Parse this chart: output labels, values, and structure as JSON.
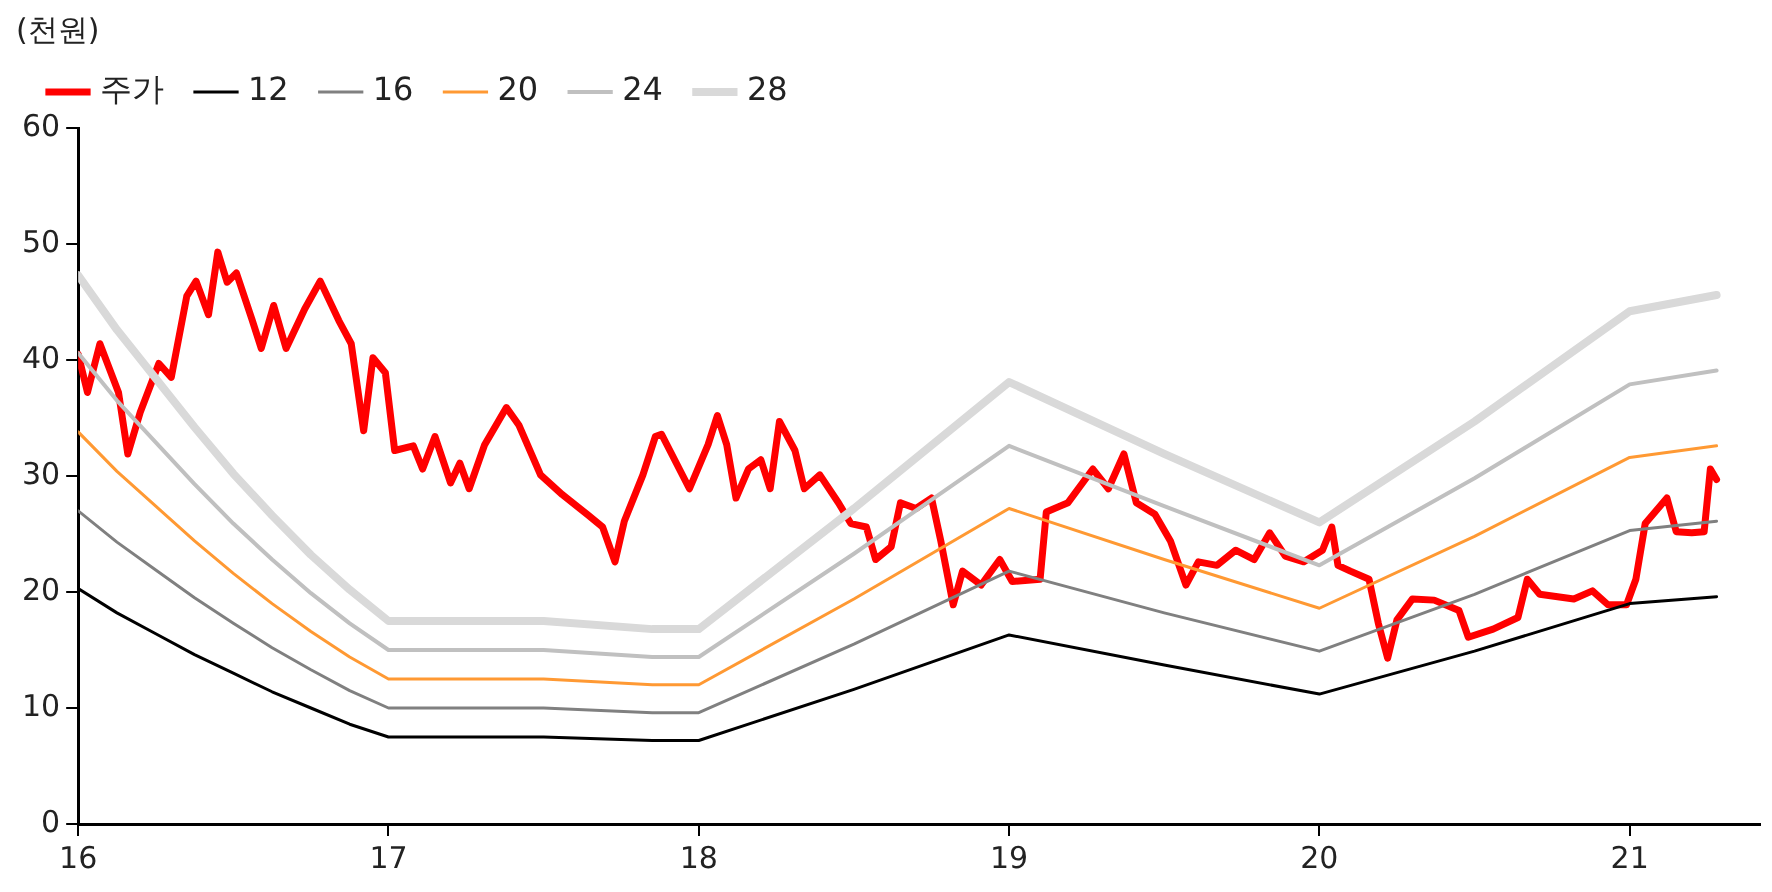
{
  "chart_data": {
    "type": "line",
    "ylabel": "(천원)",
    "x": [
      16,
      16.125,
      16.25,
      16.375,
      16.5,
      16.625,
      16.75,
      16.875,
      17,
      17.5,
      17.85,
      18,
      18.5,
      19,
      19.5,
      20,
      20.5,
      21,
      21.28
    ],
    "xlim": [
      16,
      21.42
    ],
    "xticks": [
      16,
      17,
      18,
      19,
      20,
      21
    ],
    "ylim": [
      0,
      60
    ],
    "yticks": [
      0,
      10,
      20,
      30,
      40,
      50,
      60
    ],
    "grid": false,
    "legend": "top left",
    "marker": "none",
    "line_style": "solid",
    "series": [
      {
        "name": "주가",
        "color": "#ff0000",
        "x": [
          16,
          16.03,
          16.07,
          16.13,
          16.16,
          16.2,
          16.26,
          16.3,
          16.35,
          16.38,
          16.42,
          16.45,
          16.48,
          16.51,
          16.56,
          16.59,
          16.63,
          16.67,
          16.73,
          16.78,
          16.84,
          16.88,
          16.92,
          16.95,
          16.99,
          17.02,
          17.08,
          17.11,
          17.15,
          17.2,
          17.23,
          17.26,
          17.31,
          17.38,
          17.42,
          17.49,
          17.56,
          17.64,
          17.69,
          17.73,
          17.76,
          17.82,
          17.86,
          17.88,
          17.97,
          18.03,
          18.06,
          18.09,
          18.12,
          18.16,
          18.2,
          18.23,
          18.26,
          18.31,
          18.34,
          18.39,
          18.45,
          18.49,
          18.54,
          18.57,
          18.62,
          18.65,
          18.7,
          18.75,
          18.78,
          18.82,
          18.85,
          18.91,
          18.97,
          19.01,
          19.1,
          19.12,
          19.19,
          19.27,
          19.32,
          19.37,
          19.41,
          19.47,
          19.52,
          19.57,
          19.61,
          19.67,
          19.73,
          19.79,
          19.84,
          19.89,
          19.95,
          20.01,
          20.04,
          20.06,
          20.1,
          20.16,
          20.19,
          20.22,
          20.25,
          20.3,
          20.37,
          20.45,
          20.48,
          20.56,
          20.64,
          20.67,
          20.71,
          20.82,
          20.88,
          20.93,
          20.99,
          21.02,
          21.05,
          21.12,
          21.15,
          21.2,
          21.24,
          21.26,
          21.28
        ],
        "values": [
          40.5,
          37.2,
          41.4,
          37.2,
          31.9,
          35.5,
          39.7,
          38.5,
          45.5,
          46.8,
          43.9,
          49.3,
          46.7,
          47.5,
          43.5,
          41,
          44.7,
          41,
          44.4,
          46.8,
          43.4,
          41.4,
          33.9,
          40.2,
          38.9,
          32.2,
          32.6,
          30.6,
          33.4,
          29.4,
          31.1,
          28.9,
          32.7,
          35.9,
          34.4,
          30.1,
          28.4,
          26.7,
          25.6,
          22.6,
          26.1,
          30.1,
          33.4,
          33.6,
          28.9,
          32.7,
          35.2,
          32.7,
          28.1,
          30.6,
          31.4,
          28.9,
          34.7,
          32.2,
          28.9,
          30.1,
          27.7,
          25.9,
          25.6,
          22.8,
          23.9,
          27.7,
          27.2,
          28.1,
          24.4,
          18.9,
          21.8,
          20.6,
          22.8,
          20.9,
          21.1,
          26.9,
          27.7,
          30.6,
          28.9,
          31.9,
          27.7,
          26.7,
          24.4,
          20.6,
          22.6,
          22.3,
          23.6,
          22.8,
          25.1,
          23.1,
          22.6,
          23.6,
          25.6,
          22.3,
          21.8,
          21.1,
          17.3,
          14.3,
          17.6,
          19.4,
          19.3,
          18.4,
          16.1,
          16.8,
          17.8,
          21.1,
          19.8,
          19.4,
          20.1,
          18.9,
          18.9,
          21.1,
          25.9,
          28.1,
          25.2,
          25.1,
          25.2,
          30.6,
          29.7
        ]
      },
      {
        "name": "12",
        "color": "#000000",
        "values": [
          20.3,
          18.2,
          16.4,
          14.6,
          13.0,
          11.4,
          10.0,
          8.6,
          7.5,
          7.5,
          7.2,
          7.2,
          11.6,
          16.3,
          13.7,
          11.2,
          14.9,
          19.0,
          19.6
        ]
      },
      {
        "name": "16",
        "color": "#808080",
        "values": [
          27.0,
          24.3,
          21.9,
          19.5,
          17.3,
          15.2,
          13.3,
          11.5,
          10.0,
          10.0,
          9.6,
          9.6,
          15.5,
          21.8,
          18.2,
          14.9,
          19.8,
          25.3,
          26.1
        ]
      },
      {
        "name": "20",
        "color": "#ff9933",
        "values": [
          33.8,
          30.4,
          27.4,
          24.4,
          21.6,
          19.0,
          16.6,
          14.4,
          12.5,
          12.5,
          12.0,
          12.0,
          19.4,
          27.2,
          22.8,
          18.6,
          24.8,
          31.6,
          32.6
        ]
      },
      {
        "name": "24",
        "color": "#c0c0c0",
        "values": [
          40.6,
          36.5,
          32.9,
          29.3,
          25.9,
          22.8,
          19.9,
          17.3,
          15.0,
          15.0,
          14.4,
          14.4,
          23.3,
          32.6,
          27.4,
          22.3,
          29.8,
          37.9,
          39.1
        ]
      },
      {
        "name": "28",
        "color": "#d9d9d9",
        "values": [
          47.3,
          42.6,
          38.4,
          34.2,
          30.2,
          26.6,
          23.2,
          20.2,
          17.5,
          17.5,
          16.8,
          16.8,
          27.2,
          38.1,
          31.9,
          26.0,
          34.7,
          44.2,
          45.6
        ]
      }
    ]
  }
}
